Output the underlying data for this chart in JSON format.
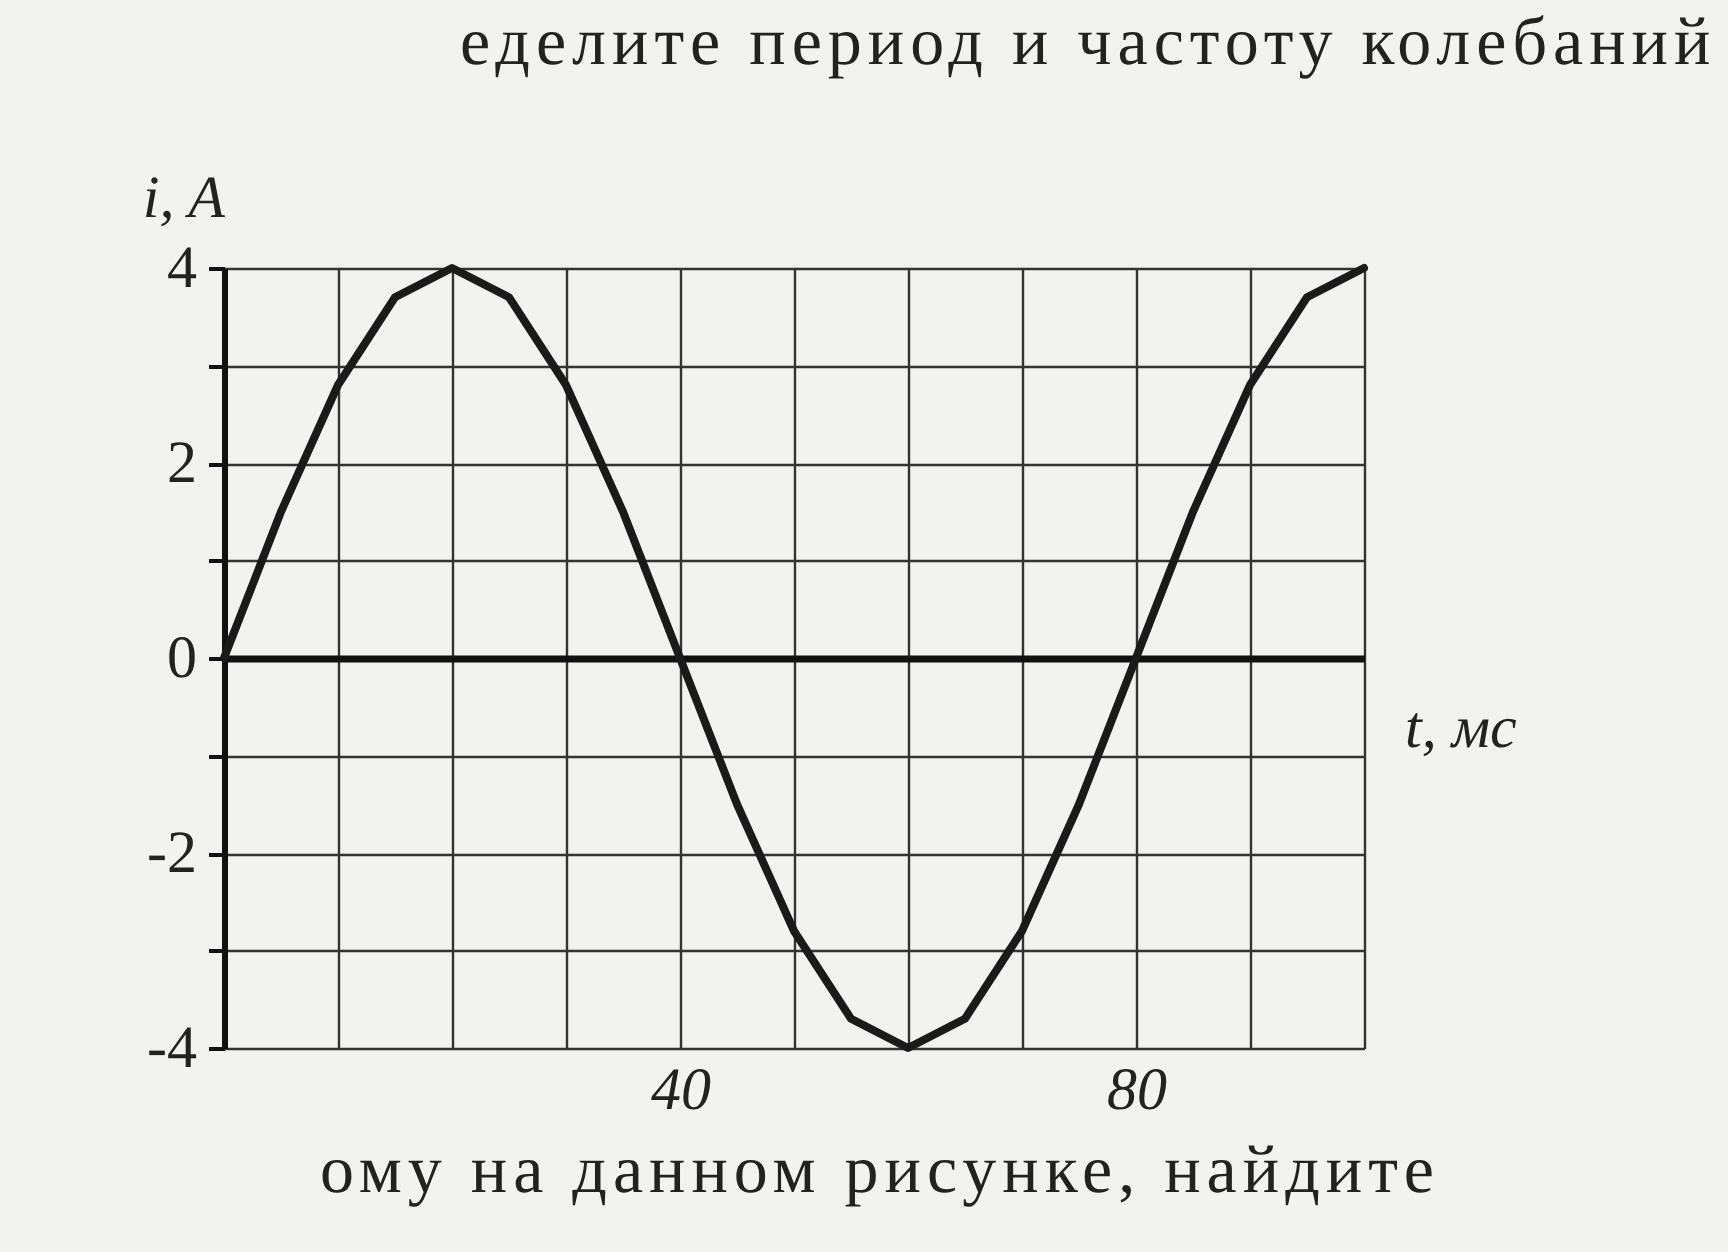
{
  "chart_data": {
    "type": "line",
    "title": "еделите период и частоту колебаний",
    "annotations": [
      "ому на данном рисунке, найдите"
    ],
    "xlabel": "t, мс",
    "ylabel": "i, A",
    "x": [
      0,
      5,
      10,
      15,
      20,
      25,
      30,
      35,
      40,
      45,
      50,
      55,
      60,
      65,
      70,
      75,
      80,
      85,
      90,
      95,
      100
    ],
    "series": [
      {
        "color": "#1a1a1a",
        "values": [
          0,
          1.5,
          2.8,
          3.7,
          4,
          3.7,
          2.8,
          1.5,
          0,
          -1.5,
          -2.8,
          -3.7,
          -4,
          -3.7,
          -2.8,
          -1.5,
          0,
          1.5,
          2.8,
          3.7,
          4
        ]
      }
    ],
    "xlim": [
      0,
      100
    ],
    "ylim": [
      -4,
      4
    ],
    "xticks": [
      {
        "value": 10,
        "label": null
      },
      {
        "value": 20,
        "label": null
      },
      {
        "value": 30,
        "label": null
      },
      40,
      {
        "value": 50,
        "label": null
      },
      {
        "value": 60,
        "label": null
      },
      {
        "value": 70,
        "label": null
      },
      80,
      {
        "value": 90,
        "label": null
      },
      {
        "value": 100,
        "label": null
      }
    ],
    "yticks": [
      -4,
      {
        "value": -3,
        "label": null
      },
      -2,
      {
        "value": -1,
        "label": null
      },
      0,
      {
        "value": 1,
        "label": null
      },
      2,
      {
        "value": 3,
        "label": null
      },
      4
    ],
    "grid": true,
    "marker": "none",
    "line_style": "solid"
  }
}
